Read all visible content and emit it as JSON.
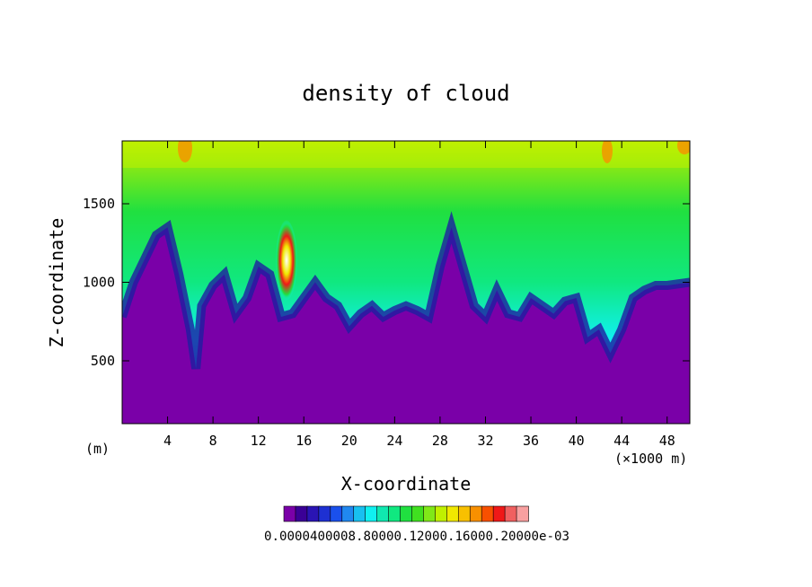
{
  "chart_data": {
    "type": "heatmap",
    "title": "density of cloud",
    "xlabel": "X-coordinate",
    "ylabel": "Z-coordinate",
    "x_unit_left": "(m)",
    "x_unit_right": "(×1000 m)",
    "xlim": [
      0,
      50
    ],
    "ylim": [
      100,
      1900
    ],
    "x_ticks": [
      4,
      8,
      12,
      16,
      20,
      24,
      28,
      32,
      36,
      40,
      44,
      48
    ],
    "y_ticks": [
      500,
      1000,
      1500
    ],
    "x_tick_labels": [
      "4",
      "8",
      "12",
      "16",
      "20",
      "24",
      "28",
      "32",
      "36",
      "40",
      "44",
      "48"
    ],
    "y_tick_labels": [
      "500",
      "1000",
      "1500"
    ],
    "colorbar_labels": "0.00E+00 4.0E-05 8.0E-05 1.2E-04 1.6E-04 2.0E-04",
    "colorbar_labels_display": "0.000.00e+00 4.00e-05 8.00e-05 1.20e-04 1.60e-04 2.00e-04 3",
    "colorbar_text": "0.0000400008.80000.12000.16000.20000e-03",
    "colorbar_colors": [
      "#7a00a8",
      "#3a0096",
      "#2a14b4",
      "#1e30d2",
      "#1a50ec",
      "#2088f0",
      "#18c0f0",
      "#10f0f0",
      "#10e8b0",
      "#10e880",
      "#20e040",
      "#40e020",
      "#80e818",
      "#c0f000",
      "#f0e800",
      "#f8c000",
      "#f89000",
      "#f85000",
      "#f01818",
      "#f06060",
      "#f8a0a0"
    ],
    "series": [
      {
        "x": [
          0,
          1,
          2,
          3,
          4,
          5,
          6,
          6.5,
          7,
          8,
          9,
          10,
          11,
          12,
          13,
          14,
          15,
          16,
          17,
          18,
          19,
          20,
          21,
          22,
          23,
          24,
          25,
          26,
          27,
          28,
          29,
          30,
          31,
          32,
          33,
          34,
          35,
          36,
          37,
          38,
          39,
          40,
          41,
          42,
          43,
          44,
          45,
          46,
          47,
          48,
          49,
          50
        ],
        "cloud_base": [
          780,
          1000,
          1150,
          1300,
          1350,
          1050,
          700,
          450,
          850,
          980,
          1050,
          800,
          900,
          1100,
          1050,
          780,
          800,
          900,
          1000,
          900,
          850,
          720,
          800,
          850,
          780,
          820,
          850,
          820,
          780,
          1100,
          1350,
          1100,
          850,
          780,
          950,
          800,
          780,
          900,
          850,
          800,
          880,
          900,
          650,
          700,
          550,
          700,
          900,
          950,
          980,
          980,
          990,
          1000
        ]
      }
    ]
  }
}
